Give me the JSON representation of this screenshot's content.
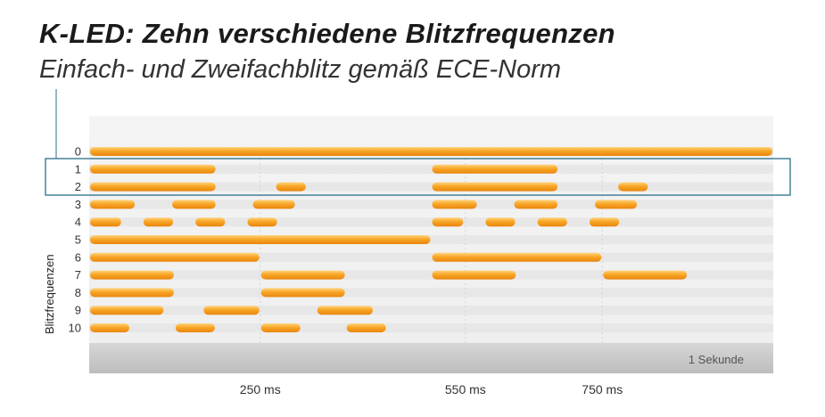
{
  "title": "K-LED: Zehn verschiedene Blitzfrequenzen",
  "subtitle": "Einfach- und Zweifachblitz gemäß ECE-Norm",
  "colors": {
    "bar": "#f59a1e",
    "bar_light": "#ffd37a",
    "track": "#ececec",
    "highlight_box": "#2a6f8a"
  },
  "chart_data": {
    "type": "bar",
    "orientation": "horizontal-timeline",
    "ylabel": "Blitzfrequenzen",
    "x_tick_labels": [
      "250 ms",
      "550 ms",
      "750 ms"
    ],
    "x_ticks": [
      250,
      550,
      750
    ],
    "x_range_ms": [
      0,
      1000
    ],
    "period_label": "1 Sekunde",
    "highlighted_rows": [
      "1",
      "2"
    ],
    "rows": [
      {
        "label": "0",
        "flashes": [
          [
            0,
            1000
          ]
        ]
      },
      {
        "label": "1",
        "flashes": [
          [
            0,
            186
          ],
          [
            500,
            686
          ]
        ]
      },
      {
        "label": "2",
        "flashes": [
          [
            0,
            186
          ],
          [
            272,
            318
          ],
          [
            500,
            686
          ],
          [
            772,
            818
          ]
        ]
      },
      {
        "label": "3",
        "flashes": [
          [
            0,
            68
          ],
          [
            120,
            186
          ],
          [
            238,
            302
          ],
          [
            500,
            568
          ],
          [
            620,
            686
          ],
          [
            738,
            802
          ]
        ]
      },
      {
        "label": "4",
        "flashes": [
          [
            0,
            48
          ],
          [
            78,
            124
          ],
          [
            154,
            200
          ],
          [
            230,
            276
          ],
          [
            500,
            548
          ],
          [
            578,
            624
          ],
          [
            654,
            700
          ],
          [
            730,
            776
          ]
        ]
      },
      {
        "label": "5",
        "flashes": [
          [
            0,
            500
          ]
        ]
      },
      {
        "label": "6",
        "flashes": [
          [
            0,
            250
          ],
          [
            500,
            750
          ]
        ]
      },
      {
        "label": "7",
        "flashes": [
          [
            0,
            125
          ],
          [
            250,
            375
          ],
          [
            500,
            625
          ],
          [
            750,
            875
          ]
        ]
      },
      {
        "label": "8",
        "flashes": [
          [
            0,
            125
          ],
          [
            250,
            375
          ]
        ]
      },
      {
        "label": "9",
        "flashes": [
          [
            0,
            110
          ],
          [
            166,
            250
          ],
          [
            332,
            416
          ]
        ]
      },
      {
        "label": "10",
        "flashes": [
          [
            0,
            60
          ],
          [
            125,
            185
          ],
          [
            250,
            310
          ],
          [
            375,
            435
          ]
        ]
      }
    ]
  }
}
